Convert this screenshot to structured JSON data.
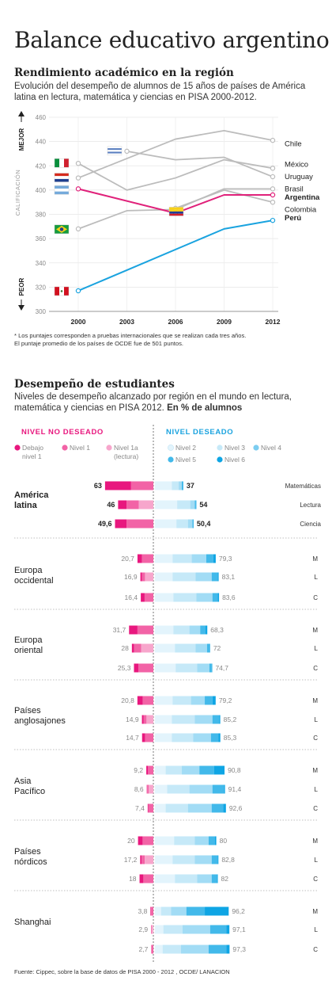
{
  "title": "Balance educativo argentino",
  "section1": {
    "heading": "Rendimiento académico en la región",
    "subtitle": "Evolución del desempeño de alumnos de 15 años de países de América latina en lectura, matemática y ciencias en PISA 2000-2012.",
    "note_line1": "* Los puntajes corresponden a pruebas internacionales que se realizan cada tres años.",
    "note_line2": "El puntaje promedio de los países de OCDE fue de 501 puntos."
  },
  "section2": {
    "heading": "Desempeño de estudiantes",
    "subtitle_plain": "Niveles de desempeño alcanzado por región en el mundo en lectura, matemática y ciencias en PISA 2012.",
    "subtitle_bold": "En % de alumnos",
    "source": "Fuente: Cippec, sobre la base de datos de PISA 2000 - 2012 , OCDE/ LANACION"
  },
  "colors": {
    "line_gray": "#bcbcbc",
    "argentina": "#e0217a",
    "peru": "#1aa3df",
    "neg_dark": "#e8177e",
    "neg_mid": "#f263a6",
    "neg_light": "#f7a6cc",
    "pos_1": "#e3f4fc",
    "pos_2": "#c6e9f8",
    "pos_3": "#a2dcf5",
    "pos_4": "#7ccdf0",
    "pos_5": "#42b9ea",
    "pos_6": "#0ea5e4"
  },
  "chart_data": [
    {
      "type": "line",
      "title": "",
      "x": [
        "2000",
        "2003",
        "2006",
        "2009",
        "2012"
      ],
      "ylim": [
        300,
        460
      ],
      "yticks": [
        300,
        320,
        340,
        360,
        380,
        400,
        420,
        440,
        460
      ],
      "ylabel": "CALIFICACIÓN",
      "label_top": "MEJOR",
      "label_bottom": "PEOR",
      "series": [
        {
          "name": "Chile",
          "values": [
            410,
            null,
            442,
            449,
            441
          ],
          "highlight": false
        },
        {
          "name": "México",
          "values": [
            422,
            400,
            410,
            425,
            418
          ],
          "highlight": false
        },
        {
          "name": "Uruguay",
          "values": [
            null,
            432,
            425,
            427,
            411
          ],
          "highlight": false
        },
        {
          "name": "Brasil",
          "values": [
            368,
            383,
            384,
            401,
            401
          ],
          "highlight": false
        },
        {
          "name": "Colombia",
          "values": [
            null,
            null,
            385,
            400,
            390
          ],
          "highlight": false
        },
        {
          "name": "Argentina",
          "values": [
            401,
            null,
            381,
            396,
            396
          ],
          "highlight": true
        },
        {
          "name": "Perú",
          "values": [
            317,
            null,
            null,
            368,
            375
          ],
          "highlight": true
        }
      ]
    },
    {
      "type": "bar",
      "title": "",
      "legend_negative_title": "NIVEL NO DESEADO",
      "legend_positive_title": "NIVEL DESEADO",
      "legend_negative": [
        "Debajo nivel 1",
        "Nivel 1",
        "Nivel 1a (lectura)"
      ],
      "legend_positive": [
        "Nivel 2",
        "Nivel 3",
        "Nivel 4",
        "Nivel 5",
        "Nivel 6"
      ],
      "groups": [
        {
          "region": "América latina",
          "rows": [
            {
              "subject": "Matemáticas",
              "negative_total": "63",
              "positive_total": "37",
              "neg": [
                34,
                29,
                0
              ],
              "pos": [
                22,
                9,
                4,
                1.5,
                0.5
              ]
            },
            {
              "subject": "Lectura",
              "negative_total": "46",
              "positive_total": "54",
              "neg": [
                11,
                16,
                19
              ],
              "pos": [
                29,
                17,
                6,
                1.5,
                0.5
              ]
            },
            {
              "subject": "Ciencia",
              "negative_total": "49,6",
              "positive_total": "50,4",
              "neg": [
                15,
                35,
                0
              ],
              "pos": [
                28,
                15,
                6,
                1,
                0.4
              ]
            }
          ]
        },
        {
          "region": "Europa occidental",
          "rows": [
            {
              "subject": "M",
              "negative_total": "20,7",
              "positive_total": "79,3",
              "neg": [
                6,
                14.7,
                0
              ],
              "pos": [
                23,
                25,
                19,
                9,
                3.3
              ]
            },
            {
              "subject": "L",
              "negative_total": "16,9",
              "positive_total": "83,1",
              "neg": [
                2,
                4,
                10.9
              ],
              "pos": [
                23,
                30,
                21,
                8,
                1.1
              ]
            },
            {
              "subject": "C",
              "negative_total": "16,4",
              "positive_total": "83,6",
              "neg": [
                5,
                11.4,
                0
              ],
              "pos": [
                24,
                30,
                21,
                7,
                1.6
              ]
            }
          ]
        },
        {
          "region": "Europa oriental",
          "rows": [
            {
              "subject": "M",
              "negative_total": "31,7",
              "positive_total": "68,3",
              "neg": [
                11,
                20.7,
                0
              ],
              "pos": [
                24,
                21,
                14,
                7,
                2.3
              ]
            },
            {
              "subject": "L",
              "negative_total": "28",
              "positive_total": "72",
              "neg": [
                3,
                9,
                16
              ],
              "pos": [
                26,
                27,
                15,
                3.5,
                0.5
              ]
            },
            {
              "subject": "C",
              "negative_total": "25,3",
              "positive_total": "74,7",
              "neg": [
                6,
                19.3,
                0
              ],
              "pos": [
                27,
                28,
                16,
                3,
                0.7
              ]
            }
          ]
        },
        {
          "region": "Países anglosajones",
          "rows": [
            {
              "subject": "M",
              "negative_total": "20,8",
              "positive_total": "79,2",
              "neg": [
                7,
                13.8,
                0
              ],
              "pos": [
                23,
                24,
                18,
                10,
                4.2
              ]
            },
            {
              "subject": "L",
              "negative_total": "14,9",
              "positive_total": "85,2",
              "neg": [
                2,
                4,
                8.9
              ],
              "pos": [
                22,
                30,
                23,
                9,
                1.2
              ]
            },
            {
              "subject": "C",
              "negative_total": "14,7",
              "positive_total": "85,3",
              "neg": [
                4,
                10.7,
                0
              ],
              "pos": [
                22,
                28,
                23,
                10,
                2.3
              ]
            }
          ]
        },
        {
          "region": "Asia Pacífico",
          "rows": [
            {
              "subject": "M",
              "negative_total": "9,2",
              "positive_total": "90,8",
              "neg": [
                2,
                7.2,
                0
              ],
              "pos": [
                14,
                21,
                23,
                19,
                13.8
              ]
            },
            {
              "subject": "L",
              "negative_total": "8,6",
              "positive_total": "91,4",
              "neg": [
                0.5,
                2,
                6.1
              ],
              "pos": [
                16,
                29,
                30,
                15,
                1.4
              ]
            },
            {
              "subject": "C",
              "negative_total": "7,4",
              "positive_total": "92,6",
              "neg": [
                1,
                6.4,
                0
              ],
              "pos": [
                14,
                29,
                31,
                15,
                3.6
              ]
            }
          ]
        },
        {
          "region": "Países nórdicos",
          "rows": [
            {
              "subject": "M",
              "negative_total": "20",
              "positive_total": "80",
              "neg": [
                6,
                14,
                0
              ],
              "pos": [
                25,
                27,
                18,
                8,
                2
              ]
            },
            {
              "subject": "L",
              "negative_total": "17,2",
              "positive_total": "82,8",
              "neg": [
                2,
                4,
                11.2
              ],
              "pos": [
                23,
                29,
                22,
                8,
                0.8
              ]
            },
            {
              "subject": "C",
              "negative_total": "18",
              "positive_total": "82",
              "neg": [
                5,
                13,
                0
              ],
              "pos": [
                26,
                29,
                19,
                7,
                1
              ]
            }
          ]
        },
        {
          "region": "Shanghai",
          "rows": [
            {
              "subject": "M",
              "negative_total": "3,8",
              "positive_total": "96,2",
              "neg": [
                1,
                2.8,
                0
              ],
              "pos": [
                8,
                13,
                20,
                24,
                31.2
              ]
            },
            {
              "subject": "L",
              "negative_total": "2,9",
              "positive_total": "97,1",
              "neg": [
                0.2,
                0.8,
                1.9
              ],
              "pos": [
                11,
                25,
                36,
                21,
                4.1
              ]
            },
            {
              "subject": "C",
              "negative_total": "2,7",
              "positive_total": "97,3",
              "neg": [
                0.5,
                2.2,
                0
              ],
              "pos": [
                10,
                24,
                36,
                23,
                4.3
              ]
            }
          ]
        }
      ]
    }
  ]
}
